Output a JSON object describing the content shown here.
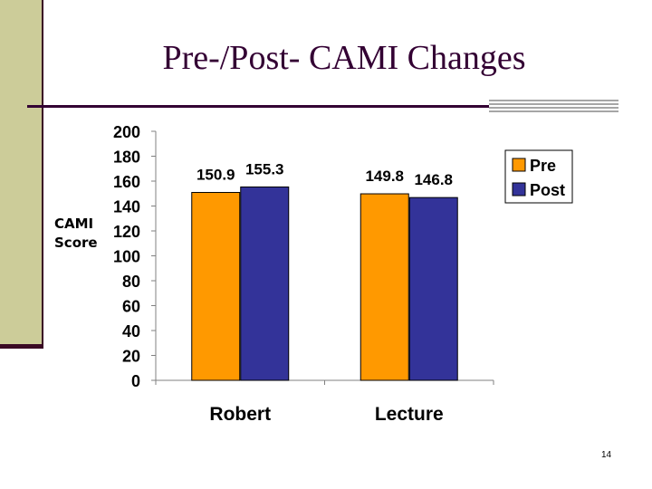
{
  "slide": {
    "title": "Pre-/Post- CAMI Changes",
    "page_number": "14"
  },
  "chart_data": {
    "type": "bar",
    "ylabel_lines": [
      "CAMI",
      "Score"
    ],
    "categories": [
      "Robert",
      "Lecture"
    ],
    "series": [
      {
        "name": "Pre",
        "color": "#ff9900",
        "values": [
          150.9,
          149.8
        ]
      },
      {
        "name": "Post",
        "color": "#333399",
        "values": [
          155.3,
          146.8
        ]
      }
    ],
    "ylim": [
      0,
      200
    ],
    "yticks": [
      0,
      20,
      40,
      60,
      80,
      100,
      120,
      140,
      160,
      180,
      200
    ],
    "legend_position": "top-right",
    "grid": false
  }
}
